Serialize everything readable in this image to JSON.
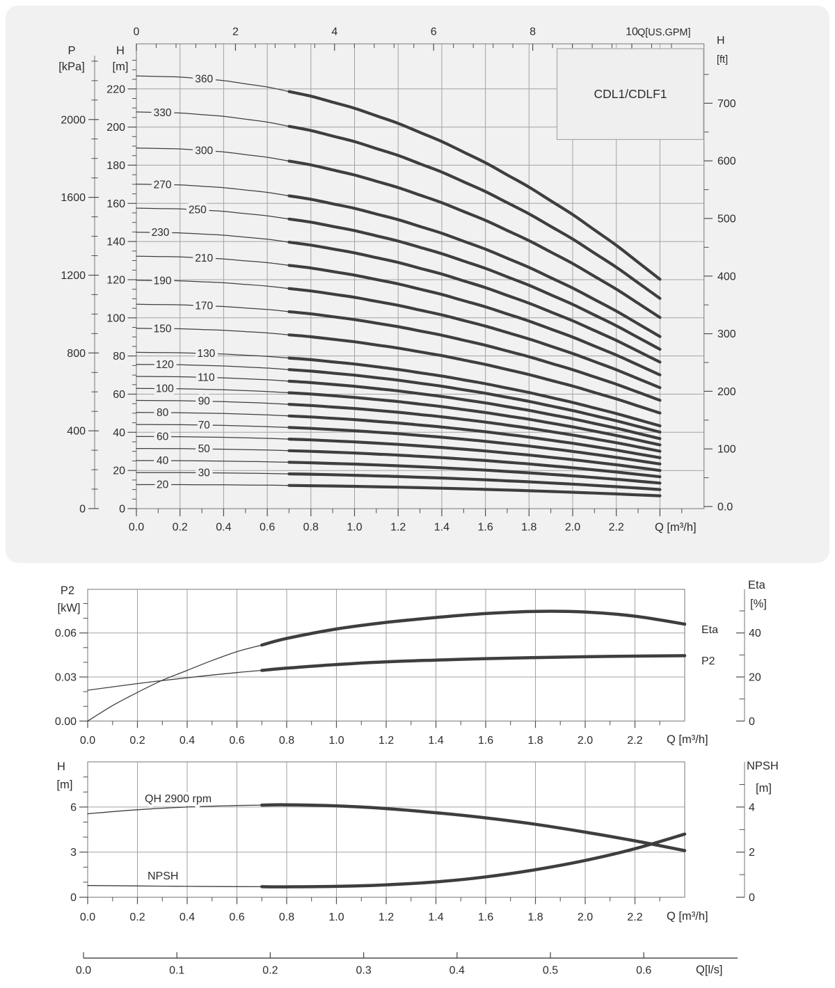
{
  "colors": {
    "background": "#ffffff",
    "panel": "#f1f1f2",
    "grid": "#a2a2a2",
    "border": "#8b8b8b",
    "tick": "#4d4d4d",
    "text": "#2c2c2c",
    "curve": "#3e3e3e",
    "box_fill": "#efeff0",
    "box_stroke": "#a8a8a8"
  },
  "model_box": {
    "label": "CDL1/CDLF1"
  },
  "titles": {
    "main_p1": "P",
    "main_p2": "[kPa]",
    "main_h1": "H",
    "main_h2": "[m]",
    "main_top": "Q[US.GPM]",
    "main_ft1": "H",
    "main_ft2": "[ft]",
    "main_x": "Q [m³/h]",
    "p2_1": "P2",
    "p2_2": "[kW]",
    "eta_1": "Eta",
    "eta_2": "[%]",
    "p2_x": "Q [m³/h]",
    "eta_series": "Eta",
    "p2_series": "P2",
    "h_1": "H",
    "h_2": "[m]",
    "npsh_1": "NPSH",
    "npsh_2": "[m]",
    "qh_series": "QH 2900 rpm",
    "npsh_series": "NPSH",
    "h_x": "Q [m³/h]",
    "ls": "Q[l/s]"
  },
  "chart_data": [
    {
      "id": "qh-family",
      "type": "line",
      "title": "CDL1/CDLF1",
      "x_bottom": {
        "label": "Q [m³/h]",
        "values": [
          0,
          0.2,
          0.4,
          0.6,
          0.8,
          1.0,
          1.2,
          1.4,
          1.6,
          1.8,
          2.0,
          2.2
        ],
        "labels": [
          "0.0",
          "0.2",
          "0.4",
          "0.6",
          "0.8",
          "1.0",
          "1.2",
          "1.4",
          "1.6",
          "1.8",
          "2.0",
          "2.2"
        ],
        "minor_step": 0.1,
        "minor_max": 2.5,
        "major_tick_max": 2.4,
        "range": [
          0,
          2.6
        ]
      },
      "x_top": {
        "label": "Q[US.GPM]",
        "values": [
          0,
          2,
          4,
          6,
          8,
          10
        ],
        "labels": [
          "0",
          "2",
          "4",
          "6",
          "8",
          "10"
        ],
        "minor_step": 0.4,
        "minor_max": 11.2,
        "m3h_per_gpm": 0.22712
      },
      "y_H": {
        "label": "H [m]",
        "values": [
          0,
          20,
          40,
          60,
          80,
          100,
          120,
          140,
          160,
          180,
          200,
          220
        ],
        "minor_step": 5,
        "minor_max": 240,
        "range": [
          0,
          243
        ]
      },
      "y_P": {
        "label": "P [kPa]",
        "values": [
          0,
          400,
          800,
          1200,
          1600,
          2000
        ],
        "minor_step": 100,
        "minor_max": 2300,
        "kpa_per_m": 9.80665
      },
      "y_ft": {
        "label": "H [ft]",
        "values": [
          0,
          100,
          200,
          300,
          400,
          500,
          600,
          700
        ],
        "labels": [
          "0.0",
          "100",
          "200",
          "300",
          "400",
          "500",
          "600",
          "700"
        ],
        "minor_step": 50,
        "minor_max": 750
      },
      "thick_from_q": 0.7,
      "q_end": 2.4,
      "q_samples": [
        0,
        0.2,
        0.4,
        0.6,
        0.8,
        1.0,
        1.2,
        1.4,
        1.6,
        1.8,
        2.0,
        2.2,
        2.4
      ],
      "droop_profile": [
        0,
        0.0054,
        0.0232,
        0.0544,
        0.0996,
        0.159,
        0.2333,
        0.3225,
        0.4268,
        0.5466,
        0.6819,
        0.833,
        1
      ],
      "series": [
        {
          "label": "360",
          "h0": 226.8,
          "h_end": 120.2,
          "label_q": 0.31
        },
        {
          "label": "330",
          "h0": 207.9,
          "h_end": 110.2,
          "label_q": 0.12
        },
        {
          "label": "300",
          "h0": 189.0,
          "h_end": 100.2,
          "label_q": 0.31
        },
        {
          "label": "270",
          "h0": 170.1,
          "h_end": 90.2,
          "label_q": 0.12
        },
        {
          "label": "250",
          "h0": 157.5,
          "h_end": 83.5,
          "label_q": 0.28
        },
        {
          "label": "230",
          "h0": 144.9,
          "h_end": 76.8,
          "label_q": 0.11
        },
        {
          "label": "210",
          "h0": 132.3,
          "h_end": 70.1,
          "label_q": 0.31
        },
        {
          "label": "190",
          "h0": 119.7,
          "h_end": 63.4,
          "label_q": 0.12
        },
        {
          "label": "170",
          "h0": 107.1,
          "h_end": 56.8,
          "label_q": 0.31
        },
        {
          "label": "150",
          "h0": 94.5,
          "h_end": 50.1,
          "label_q": 0.12
        },
        {
          "label": "130",
          "h0": 81.9,
          "h_end": 43.4,
          "label_q": 0.32
        },
        {
          "label": "120",
          "h0": 75.6,
          "h_end": 40.1,
          "label_q": 0.13
        },
        {
          "label": "110",
          "h0": 69.3,
          "h_end": 36.7,
          "label_q": 0.32
        },
        {
          "label": "100",
          "h0": 63.0,
          "h_end": 33.4,
          "label_q": 0.13
        },
        {
          "label": "90",
          "h0": 56.7,
          "h_end": 30.1,
          "label_q": 0.31
        },
        {
          "label": "80",
          "h0": 50.4,
          "h_end": 26.7,
          "label_q": 0.12
        },
        {
          "label": "70",
          "h0": 44.1,
          "h_end": 23.4,
          "label_q": 0.31
        },
        {
          "label": "60",
          "h0": 37.8,
          "h_end": 20.0,
          "label_q": 0.12
        },
        {
          "label": "50",
          "h0": 31.5,
          "h_end": 16.7,
          "label_q": 0.31
        },
        {
          "label": "40",
          "h0": 25.2,
          "h_end": 13.4,
          "label_q": 0.12
        },
        {
          "label": "30",
          "h0": 18.9,
          "h_end": 10.0,
          "label_q": 0.31
        },
        {
          "label": "20",
          "h0": 12.6,
          "h_end": 6.7,
          "label_q": 0.12
        }
      ]
    },
    {
      "id": "p2-eta",
      "type": "line",
      "x": {
        "label": "Q [m³/h]",
        "values": [
          0,
          0.2,
          0.4,
          0.6,
          0.8,
          1.0,
          1.2,
          1.4,
          1.6,
          1.8,
          2.0,
          2.2
        ],
        "labels": [
          "0.0",
          "0.2",
          "0.4",
          "0.6",
          "0.8",
          "1.0",
          "1.2",
          "1.4",
          "1.6",
          "1.8",
          "2.0",
          "2.2"
        ],
        "minor_step": 0.1,
        "minor_max": 2.3,
        "range": [
          0,
          2.4
        ]
      },
      "y_left": {
        "label": "P2 [kW]",
        "values": [
          0,
          0.03,
          0.06
        ],
        "labels": [
          "0.00",
          "0.03",
          "0.06"
        ],
        "minor_step": 0.01,
        "minor_max": 0.08
      },
      "y_right": {
        "label": "Eta [%]",
        "values": [
          0,
          20,
          40
        ],
        "labels": [
          "0",
          "20",
          "40"
        ],
        "minor_step": 10,
        "minor_max": 50
      },
      "thick_from_q": 0.7,
      "series": [
        {
          "name": "P2",
          "axis": "left",
          "q": [
            0,
            0.2,
            0.4,
            0.6,
            0.7,
            0.8,
            1.0,
            1.2,
            1.4,
            1.6,
            1.8,
            2.0,
            2.2,
            2.4
          ],
          "values": [
            0.021,
            0.0255,
            0.0295,
            0.033,
            0.0345,
            0.036,
            0.0385,
            0.0403,
            0.0415,
            0.0425,
            0.0432,
            0.0438,
            0.0442,
            0.0445
          ]
        },
        {
          "name": "Eta",
          "axis": "right",
          "q": [
            0,
            0.1,
            0.2,
            0.3,
            0.4,
            0.5,
            0.6,
            0.7,
            0.8,
            1.0,
            1.2,
            1.4,
            1.6,
            1.8,
            2.0,
            2.2,
            2.4
          ],
          "values": [
            0,
            7,
            13,
            18.5,
            23,
            27.5,
            31.5,
            34.5,
            37.5,
            41.8,
            44.8,
            47,
            48.8,
            49.8,
            49.5,
            47.6,
            44
          ]
        }
      ]
    },
    {
      "id": "h-npsh",
      "type": "line",
      "x": {
        "label": "Q [m³/h]",
        "values": [
          0,
          0.2,
          0.4,
          0.6,
          0.8,
          1.0,
          1.2,
          1.4,
          1.6,
          1.8,
          2.0,
          2.2
        ],
        "labels": [
          "0.0",
          "0.2",
          "0.4",
          "0.6",
          "0.8",
          "1.0",
          "1.2",
          "1.4",
          "1.6",
          "1.8",
          "2.0",
          "2.2"
        ],
        "minor_step": 0.1,
        "minor_max": 2.3,
        "range": [
          0,
          2.4
        ]
      },
      "y_left": {
        "label": "H [m]",
        "values": [
          0,
          3,
          6
        ],
        "labels": [
          "0",
          "3",
          "6"
        ],
        "minor_step": 1,
        "minor_max": 8
      },
      "y_right": {
        "label": "NPSH [m]",
        "values": [
          0,
          2,
          4
        ],
        "labels": [
          "0",
          "2",
          "4"
        ],
        "minor_step": 1,
        "minor_max": 5
      },
      "thick_from_q": 0.7,
      "series": [
        {
          "name": "QH 2900 rpm",
          "axis": "left",
          "q": [
            0,
            0.2,
            0.4,
            0.6,
            0.7,
            0.8,
            1.0,
            1.2,
            1.4,
            1.6,
            1.8,
            2.0,
            2.2,
            2.4
          ],
          "values": [
            5.55,
            5.82,
            6.0,
            6.1,
            6.13,
            6.15,
            6.08,
            5.9,
            5.62,
            5.28,
            4.85,
            4.33,
            3.75,
            3.1
          ]
        },
        {
          "name": "NPSH",
          "axis": "right",
          "q": [
            0,
            0.2,
            0.4,
            0.6,
            0.7,
            0.8,
            1.0,
            1.2,
            1.4,
            1.6,
            1.8,
            2.0,
            2.2,
            2.4
          ],
          "values": [
            0.52,
            0.5,
            0.48,
            0.47,
            0.465,
            0.46,
            0.48,
            0.55,
            0.68,
            0.9,
            1.22,
            1.63,
            2.15,
            2.8
          ]
        }
      ]
    },
    {
      "id": "q-ls-axis",
      "type": "axis",
      "label": "Q[l/s]",
      "tick_labels": [
        "0.0",
        "0.1",
        "0.2",
        "0.3",
        "0.4",
        "0.5",
        "0.6"
      ]
    }
  ]
}
